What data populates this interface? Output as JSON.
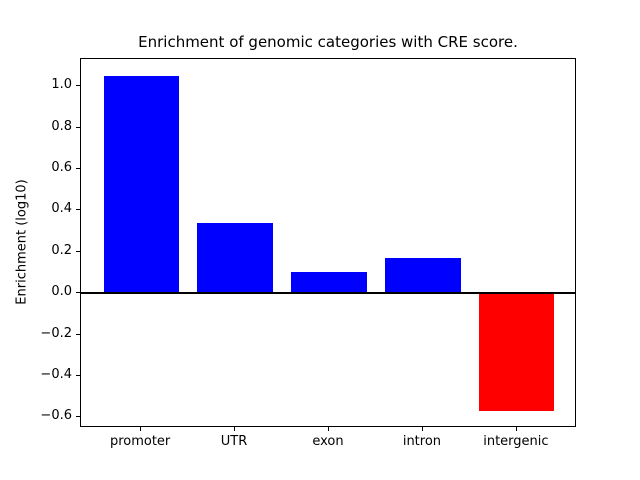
{
  "chart_data": {
    "type": "bar",
    "title": "Enrichment of genomic categories with CRE score.",
    "xlabel": "",
    "ylabel": "Enrichment (log10)",
    "categories": [
      "promoter",
      "UTR",
      "exon",
      "intron",
      "intergenic"
    ],
    "values": [
      1.05,
      0.34,
      0.1,
      0.17,
      -0.57
    ],
    "bar_colors": [
      "#0000ff",
      "#0000ff",
      "#0000ff",
      "#0000ff",
      "#ff0000"
    ],
    "positive_color": "#0000ff",
    "negative_color": "#ff0000",
    "ylim": [
      -0.651,
      1.131
    ],
    "xlim": [
      -0.64,
      4.64
    ],
    "yticks": [
      -0.6,
      -0.4,
      -0.2,
      0.0,
      0.2,
      0.4,
      0.6,
      0.8,
      1.0
    ],
    "ytick_labels": [
      "−0.6",
      "−0.4",
      "−0.2",
      "0.0",
      "0.2",
      "0.4",
      "0.6",
      "0.8",
      "1.0"
    ],
    "grid": false,
    "zero_line": true,
    "legend": null,
    "background_color": "#ffffff"
  }
}
